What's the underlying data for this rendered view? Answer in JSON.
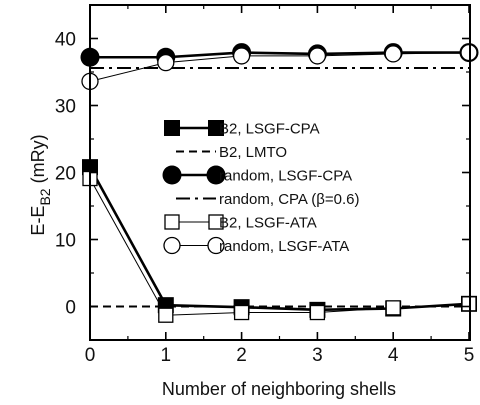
{
  "chart_data": {
    "type": "line",
    "xlabel": "Number of neighboring shells",
    "ylabel_main": "E-E",
    "ylabel_sub": "B2",
    "ylabel_unit": " (mRy)",
    "xlim": [
      0,
      5
    ],
    "ylim": [
      -5,
      45
    ],
    "xticks": [
      0,
      1,
      2,
      3,
      4,
      5
    ],
    "yticks": [
      0,
      10,
      20,
      30,
      40
    ],
    "legend_position": "center-right",
    "series": [
      {
        "name": "B2, LSGF-CPA",
        "style": "filled-square-thick",
        "x": [
          0,
          1,
          2,
          3,
          4,
          5
        ],
        "y": [
          20.8,
          0.2,
          -0.1,
          -0.5,
          -0.3,
          0.4
        ]
      },
      {
        "name": "B2, LMTO",
        "style": "dashed-hline",
        "y": 0
      },
      {
        "name": "random, LSGF-CPA",
        "style": "filled-circle-thick",
        "x": [
          0,
          1,
          2,
          3,
          4,
          5
        ],
        "y": [
          37.2,
          37.2,
          37.9,
          37.7,
          37.9,
          37.9
        ]
      },
      {
        "name": "random, CPA (β=0.6)",
        "style": "dashdot-hline",
        "y": 35.6
      },
      {
        "name": "B2, LSGF-ATA",
        "style": "open-square-thin",
        "x": [
          0,
          1,
          2,
          3,
          4,
          5
        ],
        "y": [
          19.1,
          -1.3,
          -0.9,
          -0.9,
          -0.2,
          0.4
        ]
      },
      {
        "name": "random, LSGF-ATA",
        "style": "open-circle-thin",
        "x": [
          0,
          1,
          2,
          3,
          4,
          5
        ],
        "y": [
          33.6,
          36.4,
          37.4,
          37.4,
          37.7,
          37.9
        ]
      }
    ]
  }
}
